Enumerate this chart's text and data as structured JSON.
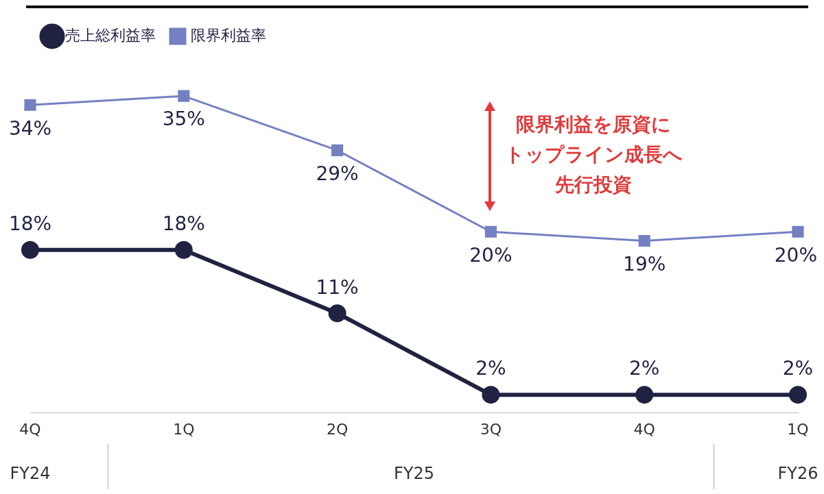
{
  "chart_data": {
    "type": "line",
    "categories": [
      "4Q",
      "1Q",
      "2Q",
      "3Q",
      "4Q",
      "1Q"
    ],
    "series": [
      {
        "name": "売上総利益率",
        "color": "#1f2341",
        "values": [
          18,
          18,
          11,
          2,
          2,
          2
        ],
        "value_labels": [
          "18%",
          "18%",
          "11%",
          "2%",
          "2%",
          "2%"
        ],
        "marker": "circle"
      },
      {
        "name": "限界利益率",
        "color": "#7480c2",
        "values": [
          34,
          35,
          29,
          20,
          19,
          20
        ],
        "value_labels": [
          "34%",
          "35%",
          "29%",
          "20%",
          "19%",
          "20%"
        ],
        "marker": "square"
      }
    ],
    "legend": "top left",
    "annotations": [
      "FY24",
      "FY25",
      "FY26",
      "限界利益を原資に",
      "トップライン成長へ",
      "先行投資"
    ]
  }
}
